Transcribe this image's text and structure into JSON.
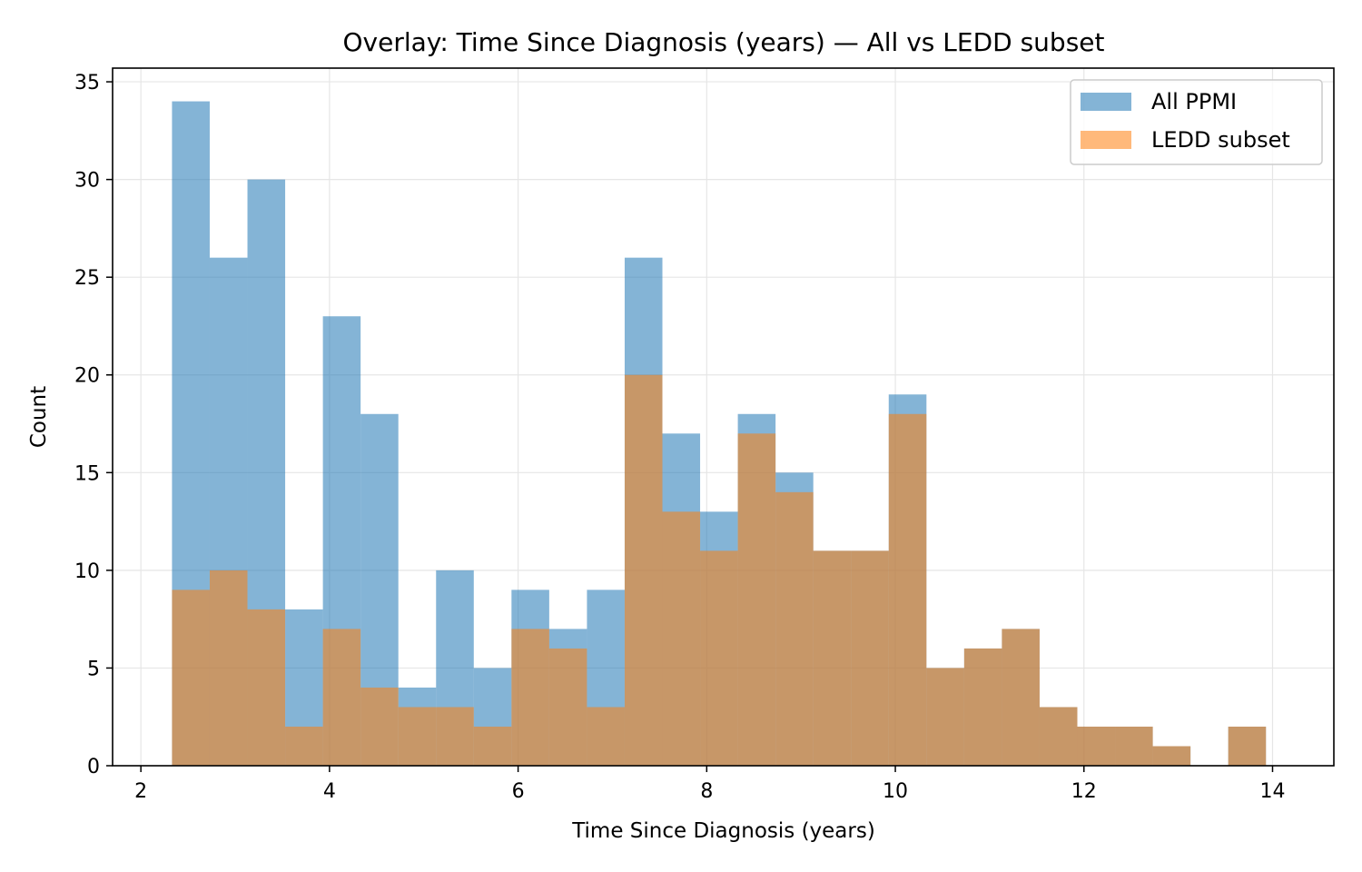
{
  "chart_data": {
    "type": "bar",
    "title": "Overlay: Time Since Diagnosis (years) — All vs LEDD subset",
    "xlabel": "Time Since Diagnosis (years)",
    "ylabel": "Count",
    "xlim": [
      1.7,
      14.65
    ],
    "ylim": [
      0,
      35.7
    ],
    "xticks": [
      2,
      4,
      6,
      8,
      10,
      12,
      14
    ],
    "yticks": [
      0,
      5,
      10,
      15,
      20,
      25,
      30,
      35
    ],
    "grid": true,
    "legend_position": "top-right",
    "bins": {
      "start": 2.33,
      "width": 0.4
    },
    "series": [
      {
        "name": "All PPMI",
        "color": "#1f77b4",
        "values": [
          34,
          26,
          30,
          8,
          23,
          18,
          4,
          10,
          5,
          9,
          7,
          9,
          26,
          17,
          13,
          18,
          15,
          11,
          11,
          19,
          5,
          6,
          7,
          3,
          2,
          2,
          1,
          0,
          2
        ]
      },
      {
        "name": "LEDD subset",
        "color": "#ff7f0e",
        "values": [
          9,
          10,
          8,
          2,
          7,
          4,
          3,
          3,
          2,
          7,
          6,
          3,
          20,
          13,
          11,
          17,
          14,
          11,
          11,
          18,
          5,
          6,
          7,
          3,
          2,
          2,
          1,
          0,
          2
        ]
      }
    ]
  }
}
